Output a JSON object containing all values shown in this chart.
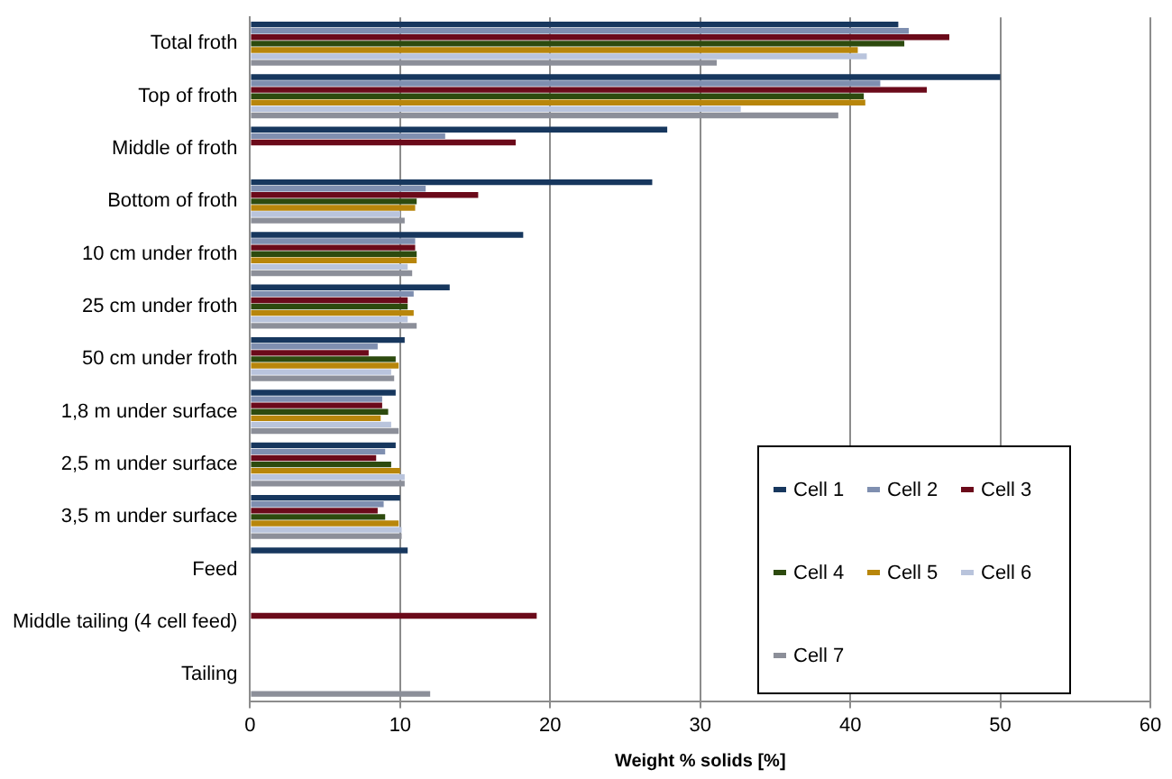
{
  "chart_data": {
    "type": "bar",
    "orientation": "horizontal",
    "xlabel": "Weight % solids [%]",
    "categories": [
      "Total froth",
      "Top of froth",
      "Middle of froth",
      "Bottom of froth",
      "10 cm under froth",
      "25 cm under froth",
      "50 cm under froth",
      "1,8 m under surface",
      "2,5 m under surface",
      "3,5 m under surface",
      "Feed",
      "Middle tailing (4 cell feed)",
      "Tailing"
    ],
    "xlim": [
      0,
      60
    ],
    "xticks": [
      0,
      10,
      20,
      30,
      40,
      50,
      60
    ],
    "grid": "x",
    "legend": "bottom right",
    "series": [
      {
        "name": "Cell 1",
        "color": "#17375e",
        "values": [
          43.2,
          50,
          27.8,
          26.8,
          18.2,
          13.3,
          10.3,
          9.7,
          9.7,
          10.0,
          10.5,
          null,
          null
        ]
      },
      {
        "name": "Cell 2",
        "color": "#7f8fb0",
        "values": [
          43.9,
          42.0,
          13.0,
          11.7,
          11.0,
          10.9,
          8.5,
          8.8,
          9.0,
          8.9,
          null,
          null,
          null
        ]
      },
      {
        "name": "Cell 3",
        "color": "#6b0a1a",
        "values": [
          46.6,
          45.1,
          17.7,
          15.2,
          11.0,
          10.5,
          7.9,
          8.8,
          8.4,
          8.5,
          null,
          19.1,
          null
        ]
      },
      {
        "name": "Cell 4",
        "color": "#2d4a0e",
        "values": [
          43.6,
          40.9,
          null,
          11.1,
          11.1,
          10.5,
          9.7,
          9.2,
          9.4,
          9.0,
          null,
          null,
          null
        ]
      },
      {
        "name": "Cell 5",
        "color": "#b8860b",
        "values": [
          40.5,
          41.0,
          null,
          11.0,
          11.1,
          10.9,
          9.9,
          8.7,
          10.0,
          9.9,
          null,
          null,
          null
        ]
      },
      {
        "name": "Cell 6",
        "color": "#b9c4dc",
        "values": [
          41.1,
          32.7,
          null,
          10.0,
          10.5,
          10.5,
          9.4,
          9.4,
          10.3,
          10.1,
          null,
          null,
          null
        ]
      },
      {
        "name": "Cell 7",
        "color": "#8c8f99",
        "values": [
          31.1,
          39.2,
          null,
          10.3,
          10.8,
          11.1,
          9.6,
          9.9,
          10.3,
          10.1,
          null,
          null,
          12.0
        ]
      }
    ]
  }
}
